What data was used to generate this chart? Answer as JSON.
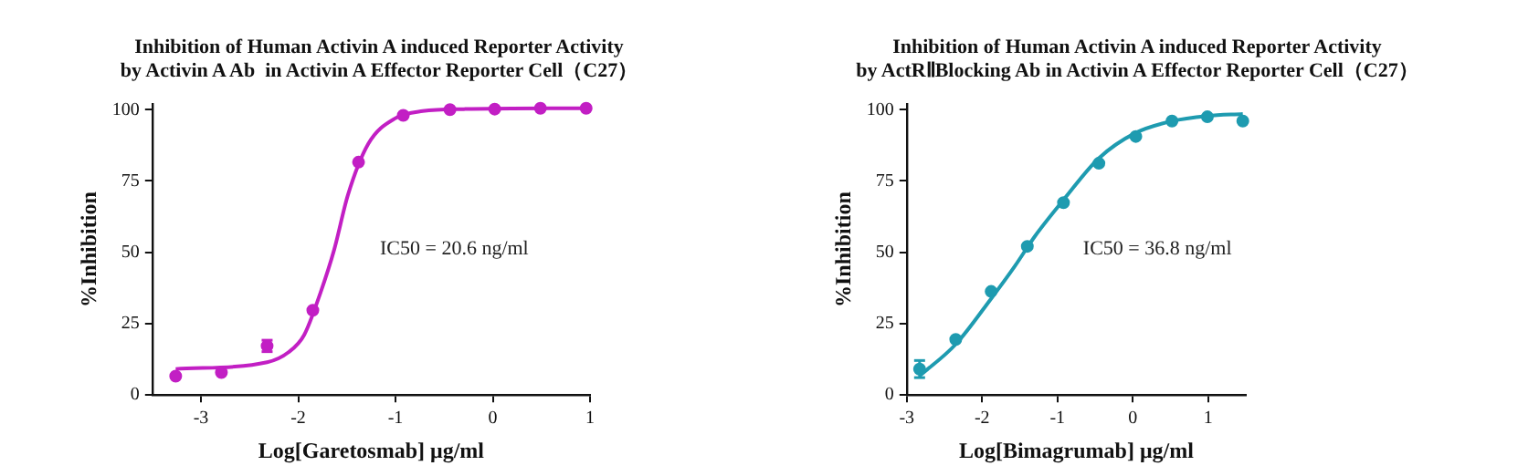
{
  "chart_data": [
    {
      "type": "scatter",
      "title": "Inhibition of Human Activin A induced Reporter Activity\nby Activin A Ab  in Activin A Effector Reporter Cell（C27）",
      "xlabel": "Log[Garetosmab] μg/ml",
      "ylabel": "%Inhibition",
      "annotations": [
        "IC50 = 20.6 ng/ml"
      ],
      "xlim": [
        -3.5,
        1
      ],
      "xticks": [
        -3,
        -2,
        -1,
        0,
        1
      ],
      "ylim": [
        0,
        102
      ],
      "yticks": [
        0,
        25,
        50,
        75,
        100
      ],
      "grid": false,
      "legend": false,
      "series": [
        {
          "type": "scatter",
          "color": "#c21fc4",
          "marker": "circle",
          "x": [
            -3.26,
            -2.79,
            -2.32,
            -1.85,
            -1.38,
            -0.92,
            -0.44,
            0.02,
            0.49,
            0.96
          ],
          "values": [
            6.6,
            7.9,
            17.2,
            29.7,
            81.6,
            98,
            100,
            100.2,
            100.5,
            100.5
          ],
          "errors": [
            null,
            null,
            2,
            null,
            null,
            null,
            null,
            null,
            null,
            null
          ]
        },
        {
          "type": "line",
          "color": "#c21fc4",
          "marker": "none",
          "line_style": "solid",
          "x": [
            -3.26,
            -2.32,
            -2.1,
            -1.94,
            -1.77,
            -1.63,
            -1.49,
            -1.28,
            -1.0,
            -0.72,
            -0.3,
            0.96
          ],
          "values": [
            9.1,
            11.5,
            15,
            21,
            36,
            51,
            70,
            88,
            97,
            99.5,
            100.2,
            100.5
          ]
        }
      ]
    },
    {
      "type": "scatter",
      "title": "Inhibition of Human Activin A induced Reporter Activity\nby ActRⅡBlocking Ab in Activin A Effector Reporter Cell（C27）",
      "xlabel": "Log[Bimagrumab] μg/ml",
      "ylabel": "%Inhibition",
      "annotations": [
        "IC50 = 36.8 ng/ml"
      ],
      "xlim": [
        -3,
        1.5
      ],
      "xticks": [
        -3,
        -2,
        -1,
        0,
        1
      ],
      "ylim": [
        0,
        102
      ],
      "yticks": [
        0,
        25,
        50,
        75,
        100
      ],
      "grid": false,
      "legend": false,
      "series": [
        {
          "type": "scatter",
          "color": "#1e9bb0",
          "marker": "circle",
          "x": [
            -2.83,
            -2.35,
            -1.88,
            -1.4,
            -0.92,
            -0.45,
            0.04,
            0.52,
            0.99,
            1.46
          ],
          "values": [
            9.1,
            19.5,
            36.3,
            52.1,
            67.4,
            81.2,
            90.6,
            96,
            97.5,
            96
          ],
          "errors": [
            3,
            null,
            null,
            null,
            null,
            null,
            null,
            null,
            null,
            null
          ]
        },
        {
          "type": "line",
          "color": "#1e9bb0",
          "marker": "none",
          "line_style": "solid",
          "x": [
            -2.83,
            -2.35,
            -1.88,
            -1.57,
            -1.29,
            -0.92,
            -0.45,
            0.04,
            0.52,
            0.99,
            1.46
          ],
          "values": [
            6.7,
            17.8,
            33.8,
            45,
            56,
            68.4,
            83,
            91.9,
            96,
            97.8,
            98.5
          ]
        }
      ]
    }
  ]
}
